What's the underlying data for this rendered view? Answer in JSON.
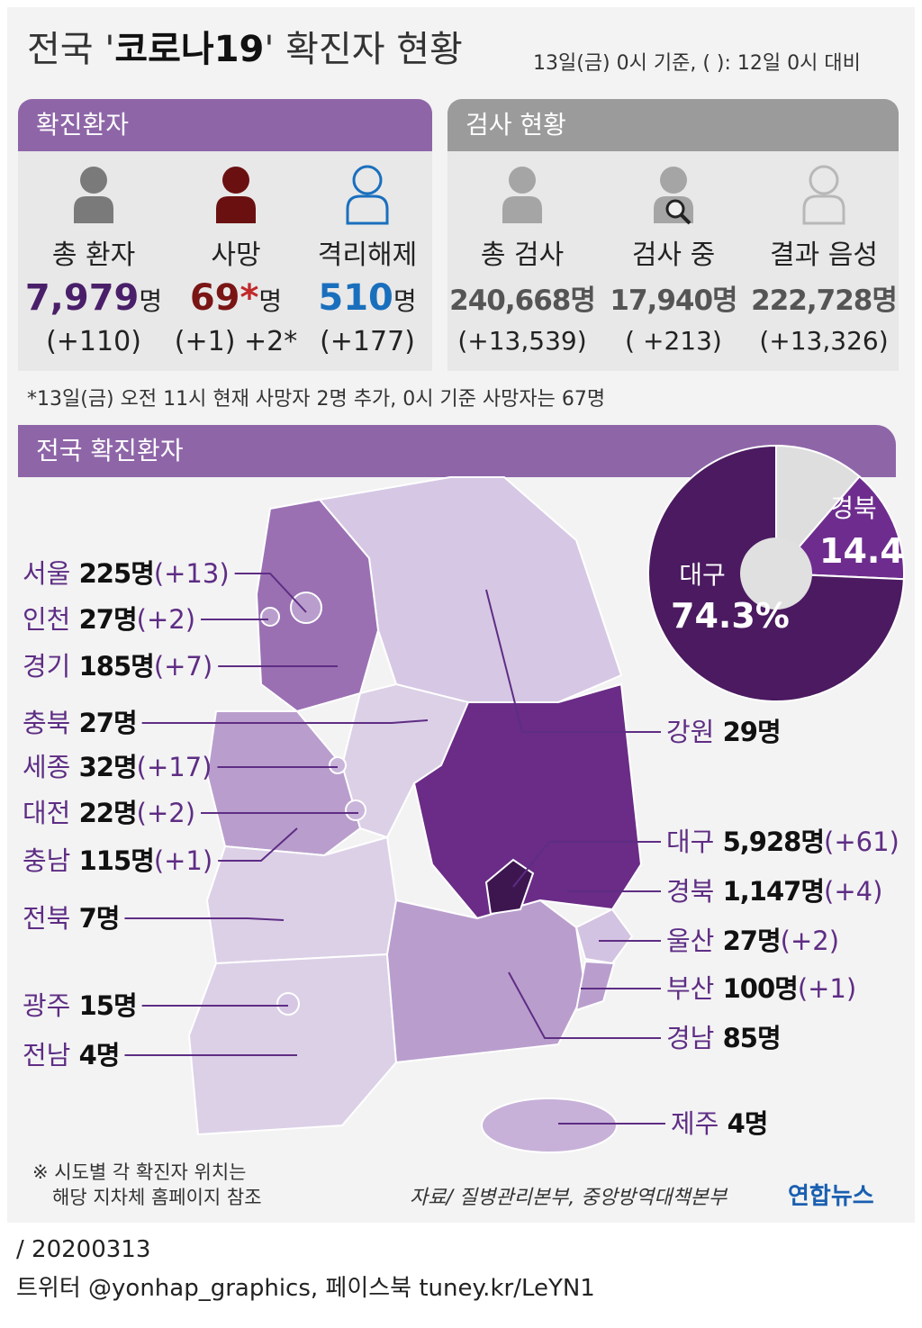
{
  "header": {
    "title_prefix": "전국 '",
    "title_bold": "코로나19",
    "title_suffix": "' 확진자 현황",
    "subtitle": "13일(금) 0시 기준, ( ): 12일 0시 대비"
  },
  "patients": {
    "heading": "확진환자",
    "items": [
      {
        "label": "총 환자",
        "value": "7,979",
        "unit": "명",
        "change": "(+110)"
      },
      {
        "label": "사망",
        "value": "69",
        "marker": "*",
        "unit": "명",
        "change": "(+1) +2*"
      },
      {
        "label": "격리해제",
        "value": "510",
        "unit": "명",
        "change": "(+177)"
      }
    ]
  },
  "tests": {
    "heading": "검사 현황",
    "items": [
      {
        "label": "총 검사",
        "value": "240,668명",
        "change": "(+13,539)"
      },
      {
        "label": "검사 중",
        "value": "17,940명",
        "change": "( +213)"
      },
      {
        "label": "결과 음성",
        "value": "222,728명",
        "change": "(+13,326)"
      }
    ]
  },
  "footnote": "*13일(금) 오전 11시 현재 사망자 2명 추가, 0시 기준 사망자는 67명",
  "map": {
    "heading": "전국 확진환자",
    "regions": [
      {
        "name": "서울",
        "value": "225명",
        "change": "(+13)"
      },
      {
        "name": "인천",
        "value": "27명",
        "change": "(+2)"
      },
      {
        "name": "경기",
        "value": "185명",
        "change": "(+7)"
      },
      {
        "name": "충북",
        "value": "27명"
      },
      {
        "name": "세종",
        "value": "32명",
        "change": "(+17)"
      },
      {
        "name": "대전",
        "value": "22명",
        "change": "(+2)"
      },
      {
        "name": "충남",
        "value": "115명",
        "change": "(+1)"
      },
      {
        "name": "전북",
        "value": "7명"
      },
      {
        "name": "광주",
        "value": "15명"
      },
      {
        "name": "전남",
        "value": "4명"
      },
      {
        "name": "강원",
        "value": "29명"
      },
      {
        "name": "대구",
        "value": "5,928명",
        "change": "(+61)"
      },
      {
        "name": "경북",
        "value": "1,147명",
        "change": "(+4)"
      },
      {
        "name": "울산",
        "value": "27명",
        "change": "(+2)"
      },
      {
        "name": "부산",
        "value": "100명",
        "change": "(+1)"
      },
      {
        "name": "경남",
        "value": "85명"
      },
      {
        "name": "제주",
        "value": "4명"
      }
    ]
  },
  "chart_data": {
    "type": "pie",
    "categories": [
      "대구",
      "경북",
      null
    ],
    "values": [
      74.3,
      14.4,
      11.3
    ],
    "value_labels": [
      "74.3%",
      "14.4",
      null
    ],
    "colors": [
      "#4b1a60",
      "#6e2d8e",
      "#dedede"
    ]
  },
  "notes": [
    "※ 시도별 각 확진자 위치는",
    "해당 지차체 홈페이지 참조"
  ],
  "source": "자료/ 질병관리본부, 중앙방역대책본부",
  "logo": "연합뉴스",
  "footer": {
    "date": "/ 20200313",
    "social": "트위터 @yonhap_graphics, 페이스북 tuney.kr/LeYN1"
  }
}
